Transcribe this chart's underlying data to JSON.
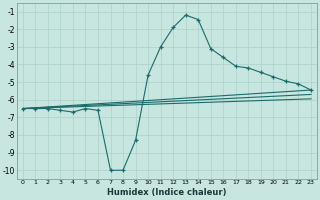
{
  "xlabel": "Humidex (Indice chaleur)",
  "xlim": [
    -0.5,
    23.5
  ],
  "ylim": [
    -10.5,
    -0.5
  ],
  "yticks": [
    -1,
    -2,
    -3,
    -4,
    -5,
    -6,
    -7,
    -8,
    -9,
    -10
  ],
  "xticks": [
    0,
    1,
    2,
    3,
    4,
    5,
    6,
    7,
    8,
    9,
    10,
    11,
    12,
    13,
    14,
    15,
    16,
    17,
    18,
    19,
    20,
    21,
    22,
    23
  ],
  "background_color": "#c8e6e0",
  "grid_color": "#b0d4cc",
  "line_color": "#1a6b6b",
  "main_line": {
    "x": [
      0,
      1,
      2,
      3,
      4,
      5,
      6,
      7,
      8,
      9,
      10,
      11,
      12,
      13,
      14,
      15,
      16,
      17,
      18,
      19,
      20,
      21,
      22,
      23
    ],
    "y": [
      -6.5,
      -6.5,
      -6.5,
      -6.6,
      -6.7,
      -6.5,
      -6.6,
      -10.0,
      -10.0,
      -8.3,
      -4.6,
      -3.0,
      -1.9,
      -1.2,
      -1.45,
      -3.1,
      -3.6,
      -4.1,
      -4.2,
      -4.45,
      -4.7,
      -4.95,
      -5.1,
      -5.45
    ]
  },
  "smooth_lines": [
    {
      "x": [
        0,
        23
      ],
      "y": [
        -6.5,
        -5.45
      ]
    },
    {
      "x": [
        0,
        23
      ],
      "y": [
        -6.5,
        -5.7
      ]
    },
    {
      "x": [
        0,
        23
      ],
      "y": [
        -6.5,
        -5.95
      ]
    }
  ]
}
